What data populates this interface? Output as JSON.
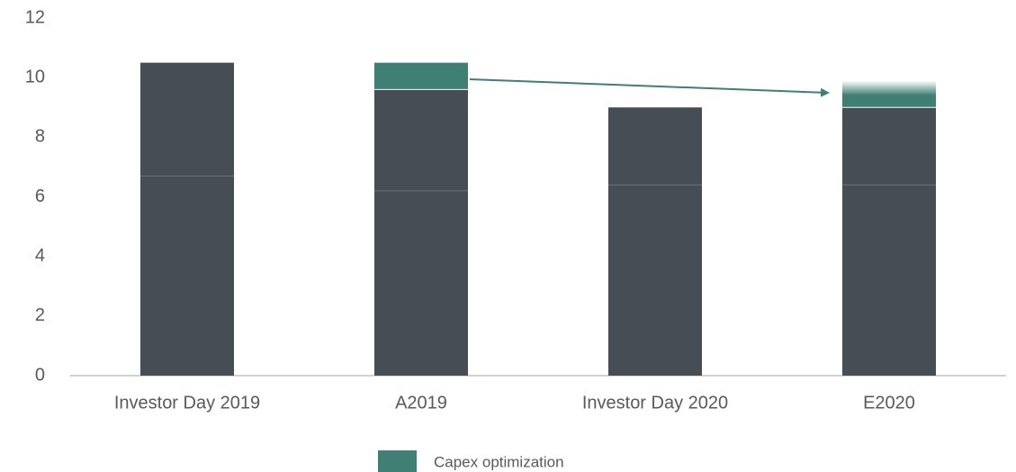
{
  "chart_data": {
    "type": "stacked_bar",
    "categories": [
      "Investor Day 2019",
      "A2019",
      "Investor Day 2020",
      "E2020"
    ],
    "series": [
      {
        "color": "#464d55",
        "values": [
          6.7,
          6.2,
          6.4,
          6.4
        ]
      },
      {
        "color": "#464d55",
        "values": [
          3.8,
          3.4,
          2.6,
          2.6
        ]
      },
      {
        "name": "Capex optimization",
        "color": "#3f7f74",
        "values": [
          0,
          0.9,
          0,
          0.9
        ]
      }
    ],
    "ylim": [
      0,
      12
    ],
    "yticks": [
      0,
      2,
      4,
      6,
      8,
      10,
      12
    ],
    "grid": false,
    "legend": "bottom"
  }
}
